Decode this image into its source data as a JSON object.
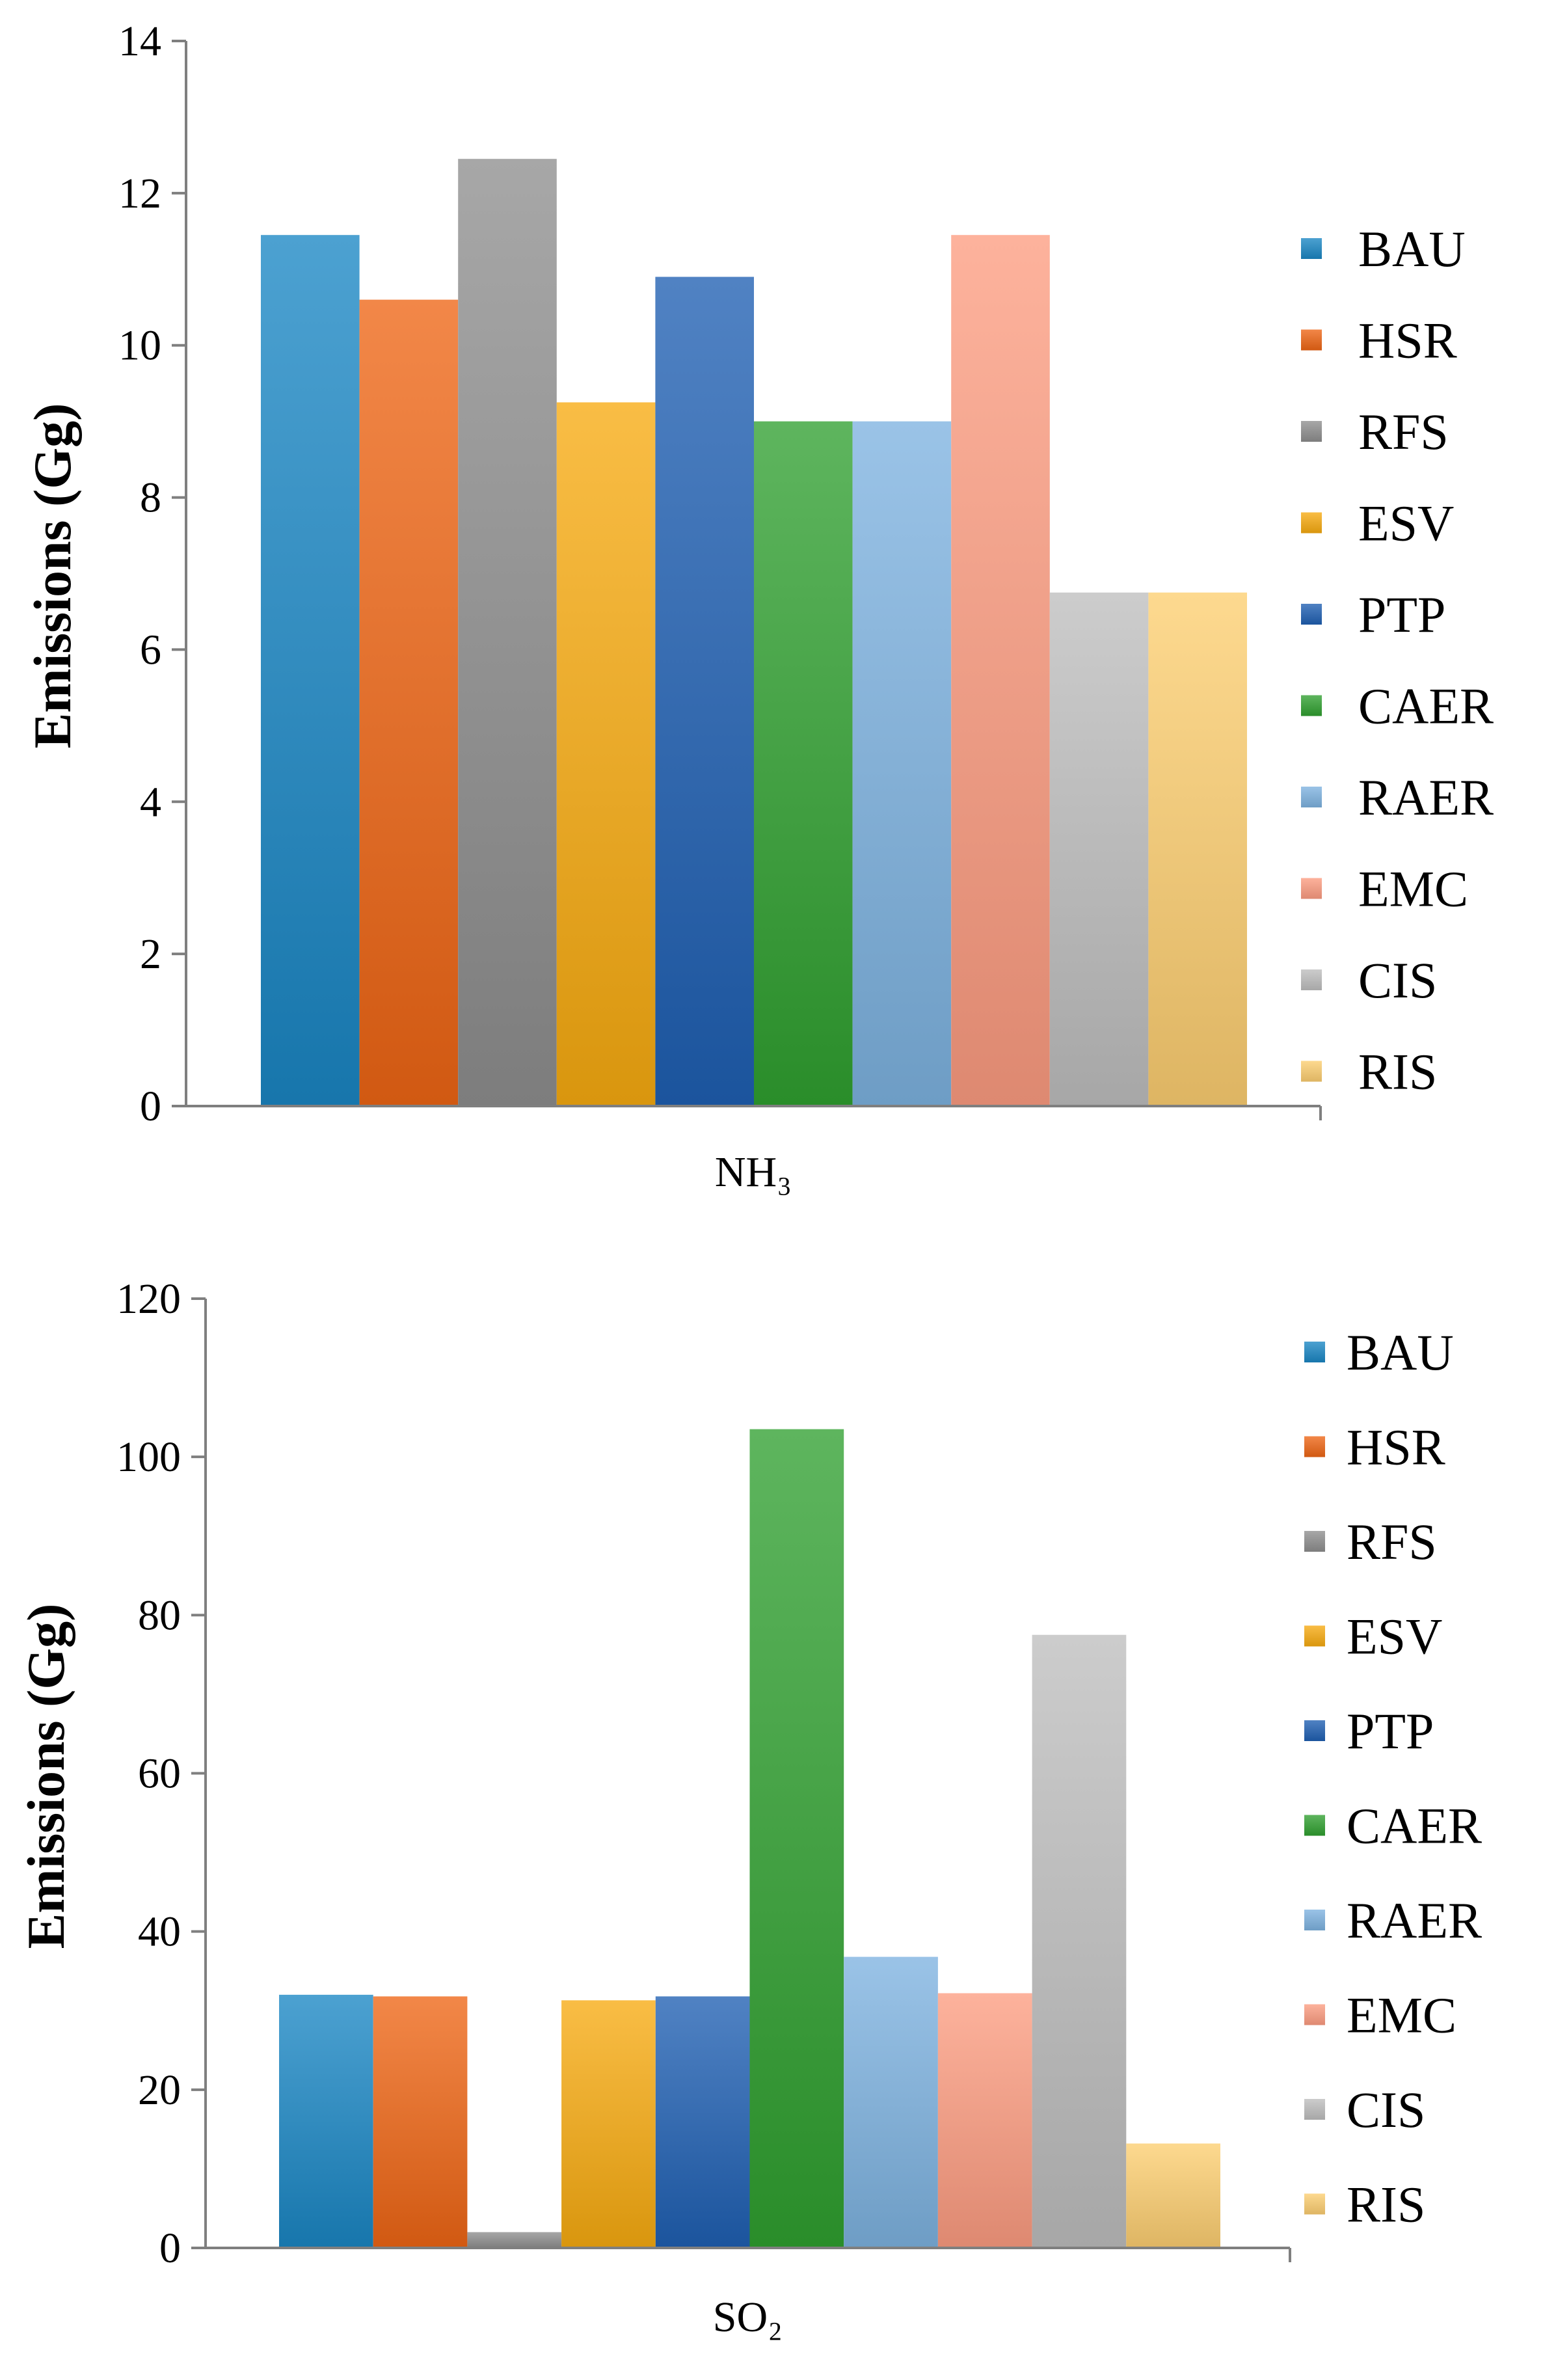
{
  "chart_data": [
    {
      "type": "bar",
      "categories": [
        "NH₃"
      ],
      "series": [
        {
          "name": "BAU",
          "values": [
            11.45
          ],
          "color": "#1A86C4"
        },
        {
          "name": "HSR",
          "values": [
            10.6
          ],
          "color": "#EE6514"
        },
        {
          "name": "RFS",
          "values": [
            12.45
          ],
          "color": "#8E8E8E"
        },
        {
          "name": "ESV",
          "values": [
            9.25
          ],
          "color": "#F7AA10"
        },
        {
          "name": "PTP",
          "values": [
            10.9
          ],
          "color": "#1F5FB2"
        },
        {
          "name": "CAER",
          "values": [
            9.0
          ],
          "color": "#30A030"
        },
        {
          "name": "RAER",
          "values": [
            9.0
          ],
          "color": "#7DB2E0"
        },
        {
          "name": "EMC",
          "values": [
            11.45
          ],
          "color": "#FC9C80"
        },
        {
          "name": "CIS",
          "values": [
            6.75
          ],
          "color": "#BEBEBE"
        },
        {
          "name": "RIS",
          "values": [
            6.75
          ],
          "color": "#FCCE70"
        }
      ],
      "ylabel": "Emissions (Gg)",
      "xlabel": "",
      "ylim": [
        0,
        14
      ],
      "yticks": [
        "0",
        "2",
        "4",
        "6",
        "8",
        "10",
        "12",
        "14"
      ],
      "legend_position": "right",
      "grid": false
    },
    {
      "type": "bar",
      "categories": [
        "SO₂"
      ],
      "series": [
        {
          "name": "BAU",
          "values": [
            32.0
          ],
          "color": "#1A86C4"
        },
        {
          "name": "HSR",
          "values": [
            31.8
          ],
          "color": "#EE6514"
        },
        {
          "name": "RFS",
          "values": [
            2.0
          ],
          "color": "#8E8E8E"
        },
        {
          "name": "ESV",
          "values": [
            31.3
          ],
          "color": "#F7AA10"
        },
        {
          "name": "PTP",
          "values": [
            31.8
          ],
          "color": "#1F5FB2"
        },
        {
          "name": "CAER",
          "values": [
            103.5
          ],
          "color": "#30A030"
        },
        {
          "name": "RAER",
          "values": [
            36.8
          ],
          "color": "#7DB2E0"
        },
        {
          "name": "EMC",
          "values": [
            32.2
          ],
          "color": "#FC9C80"
        },
        {
          "name": "CIS",
          "values": [
            77.5
          ],
          "color": "#BEBEBE"
        },
        {
          "name": "RIS",
          "values": [
            13.2
          ],
          "color": "#FCCE70"
        }
      ],
      "ylabel": "Emissions (Gg)",
      "xlabel": "",
      "ylim": [
        0,
        120
      ],
      "yticks": [
        "0",
        "20",
        "40",
        "60",
        "80",
        "100",
        "120"
      ],
      "legend_position": "right",
      "grid": false
    }
  ]
}
